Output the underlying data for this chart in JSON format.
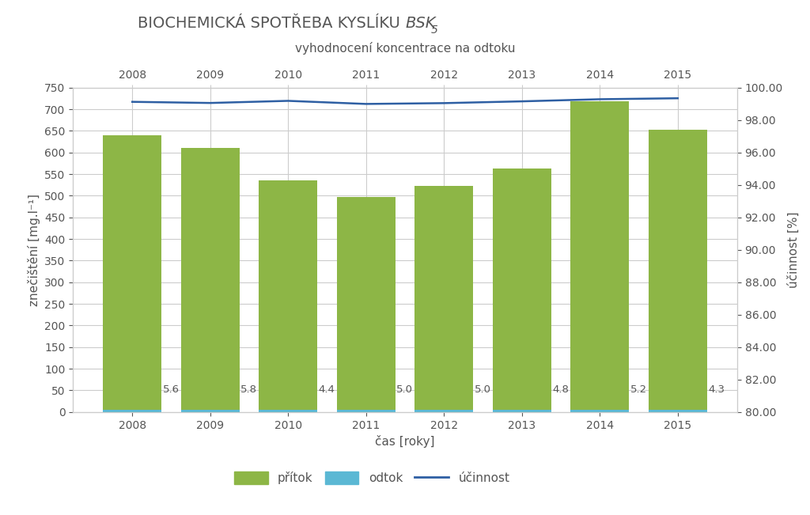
{
  "years": [
    2008,
    2009,
    2010,
    2011,
    2012,
    2013,
    2014,
    2015
  ],
  "pritok": [
    640,
    610,
    535,
    497,
    522,
    563,
    718,
    652
  ],
  "odtok_bar": [
    5.6,
    5.8,
    4.4,
    5.0,
    5.0,
    4.8,
    5.2,
    4.3
  ],
  "odtok_labels": [
    "5.6",
    "5.8",
    "4.4",
    "5.0",
    "5.0",
    "4.8",
    "5.2",
    "4.3"
  ],
  "ucinnost": [
    99.12,
    99.05,
    99.18,
    98.99,
    99.04,
    99.15,
    99.28,
    99.34
  ],
  "title_sub": "vyhodnocení koncentrace na odtoku",
  "xlabel": "čas [roky]",
  "ylabel_left": "znečištění [mg.l⁻¹]",
  "ylabel_right": "účinnost [%]",
  "ylim_left": [
    0,
    750
  ],
  "ylim_right": [
    80.0,
    100.0
  ],
  "yticks_left": [
    0,
    50,
    100,
    150,
    200,
    250,
    300,
    350,
    400,
    450,
    500,
    550,
    600,
    650,
    700,
    750
  ],
  "yticks_right": [
    80.0,
    82.0,
    84.0,
    86.0,
    88.0,
    90.0,
    92.0,
    94.0,
    96.0,
    98.0,
    100.0
  ],
  "bar_color_pritok": "#8db646",
  "bar_color_odtok": "#5bb8d4",
  "line_color_ucinnost": "#2e5fa3",
  "background_color": "#ffffff",
  "grid_color": "#cccccc",
  "bar_width": 0.75,
  "title_color": "#555555",
  "label_color": "#555555",
  "legend_labels": [
    "přítok",
    "odtok",
    "účinnost"
  ]
}
